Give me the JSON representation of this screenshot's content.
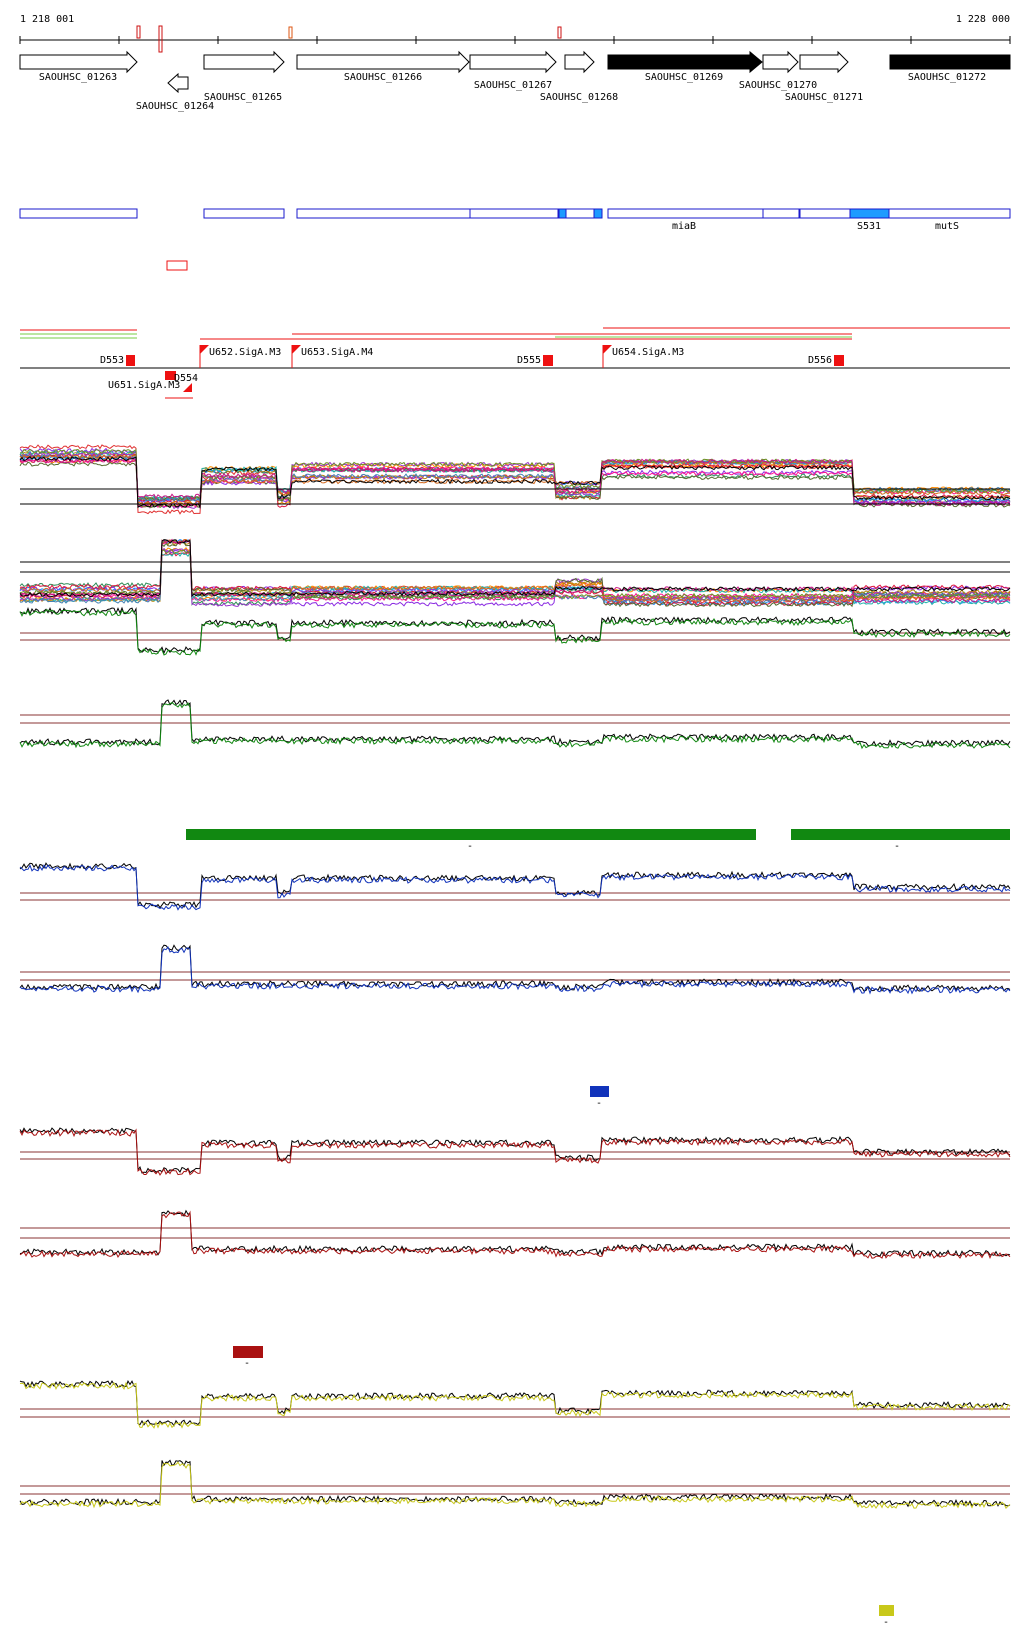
{
  "coordinates": {
    "start": "1 218 001",
    "end": "1 228 000"
  },
  "genes": [
    {
      "id": "SAOUHSC_01263",
      "strand": "+",
      "fill": "#ffffff"
    },
    {
      "id": "SAOUHSC_01264",
      "strand": "-",
      "fill": "#ffffff"
    },
    {
      "id": "SAOUHSC_01265",
      "strand": "+",
      "fill": "#ffffff"
    },
    {
      "id": "SAOUHSC_01266",
      "strand": "+",
      "fill": "#ffffff"
    },
    {
      "id": "SAOUHSC_01267",
      "strand": "+",
      "fill": "#ffffff"
    },
    {
      "id": "SAOUHSC_01268",
      "strand": "+",
      "fill": "#ffffff"
    },
    {
      "id": "SAOUHSC_01269",
      "strand": "+",
      "fill": "#000000"
    },
    {
      "id": "SAOUHSC_01270",
      "strand": "+",
      "fill": "#ffffff"
    },
    {
      "id": "SAOUHSC_01271",
      "strand": "+",
      "fill": "#ffffff"
    },
    {
      "id": "SAOUHSC_01272",
      "strand": "+",
      "fill": "#000000"
    }
  ],
  "annotation_labels": [
    "miaB",
    "S531",
    "mutS"
  ],
  "features": [
    {
      "id": "D553",
      "kind": "downshift"
    },
    {
      "id": "D554",
      "kind": "downshift"
    },
    {
      "id": "U651.SigA.M3",
      "kind": "upshift"
    },
    {
      "id": "U652.SigA.M3",
      "kind": "upshift"
    },
    {
      "id": "U653.SigA.M4",
      "kind": "upshift"
    },
    {
      "id": "D555",
      "kind": "downshift"
    },
    {
      "id": "U654.SigA.M3",
      "kind": "upshift"
    },
    {
      "id": "D556",
      "kind": "downshift"
    }
  ],
  "colors": {
    "gene_outline": "#000000",
    "annotation_blue": "#1a1acc",
    "annotation_cyan": "#1e9bff",
    "feature_red": "#ee1111",
    "green_track": "#118811",
    "blue_track": "#1133bb",
    "red_track": "#aa1111",
    "yellow_track": "#c8c81a",
    "threshold": "#883333"
  },
  "tracks": [
    {
      "name": "all-conditions-profiles",
      "kind": "multi"
    },
    {
      "name": "all-conditions-profiles-2",
      "kind": "multi"
    },
    {
      "name": "green-condition-profile",
      "color": "#118811"
    },
    {
      "name": "green-condition-profile-2",
      "color": "#118811"
    },
    {
      "name": "blue-condition-profile",
      "color": "#1133bb"
    },
    {
      "name": "blue-condition-profile-2",
      "color": "#1133bb"
    },
    {
      "name": "red-condition-profile",
      "color": "#aa1111"
    },
    {
      "name": "red-condition-profile-2",
      "color": "#aa1111"
    },
    {
      "name": "yellow-condition-profile",
      "color": "#c8c81a"
    },
    {
      "name": "yellow-condition-profile-2",
      "color": "#c8c81a"
    }
  ],
  "segment_markers": [
    "-",
    "-",
    "-",
    "-",
    "-"
  ]
}
